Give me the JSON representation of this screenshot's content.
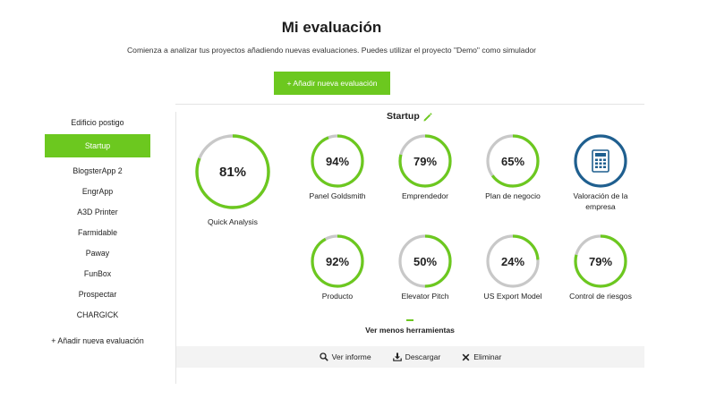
{
  "header": {
    "title": "Mi evaluación",
    "subtitle": "Comienza a analizar tus proyectos añadiendo nuevas evaluaciones. Puedes utilizar el proyecto \"Demo\" como simulador",
    "add_button": "+ Añadir nueva evaluación"
  },
  "sidebar": {
    "items": [
      {
        "label": "Edificio postigo",
        "active": false
      },
      {
        "label": "Startup",
        "active": true
      },
      {
        "label": "BlogsterApp 2",
        "active": false
      },
      {
        "label": "EngrApp",
        "active": false
      },
      {
        "label": "A3D Printer",
        "active": false
      },
      {
        "label": "Farmidable",
        "active": false
      },
      {
        "label": "Paway",
        "active": false
      },
      {
        "label": "FunBox",
        "active": false
      },
      {
        "label": "Prospectar",
        "active": false
      },
      {
        "label": "CHARGICK",
        "active": false
      }
    ],
    "add_label": "+ Añadir nueva evaluación"
  },
  "project": {
    "title": "Startup",
    "edit_icon": "pencil-icon"
  },
  "quick_analysis": {
    "value": 81,
    "display": "81%",
    "label": "Quick Analysis"
  },
  "tools": [
    {
      "value": 94,
      "display": "94%",
      "label": "Panel Goldsmith"
    },
    {
      "value": 79,
      "display": "79%",
      "label": "Emprendedor"
    },
    {
      "value": 65,
      "display": "65%",
      "label": "Plan de negocio"
    },
    {
      "value": null,
      "display": "",
      "label": "Valoración de la empresa",
      "icon": "calculator-icon"
    },
    {
      "value": 92,
      "display": "92%",
      "label": "Producto"
    },
    {
      "value": 50,
      "display": "50%",
      "label": "Elevator Pitch"
    },
    {
      "value": 24,
      "display": "24%",
      "label": "US Export Model"
    },
    {
      "value": 79,
      "display": "79%",
      "label": "Control de riesgos"
    }
  ],
  "toggle_label": "Ver menos herramientas",
  "actions": {
    "report": "Ver informe",
    "download": "Descargar",
    "delete": "Eliminar"
  },
  "colors": {
    "accent": "#6cc81f",
    "track": "#c8c8c8",
    "calculator": "#1f5f8f"
  }
}
